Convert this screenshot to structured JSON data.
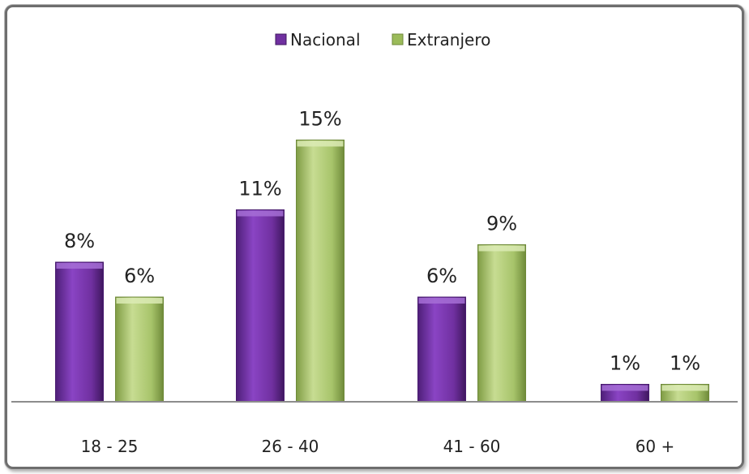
{
  "chart_data": {
    "type": "bar",
    "categories": [
      "18 - 25",
      "26 - 40",
      "41 - 60",
      "60 +"
    ],
    "series": [
      {
        "name": "Nacional",
        "values": [
          8,
          11,
          6,
          1
        ],
        "labels": [
          "8%",
          "11%",
          "6%",
          "1%"
        ]
      },
      {
        "name": "Extranjero",
        "values": [
          6,
          15,
          9,
          1
        ],
        "labels": [
          "6%",
          "15%",
          "9%",
          "1%"
        ]
      }
    ],
    "ylim": [
      0,
      18
    ],
    "grid": false,
    "legend": "top-center",
    "colors": [
      "#7030a0",
      "#9bbb59"
    ]
  }
}
